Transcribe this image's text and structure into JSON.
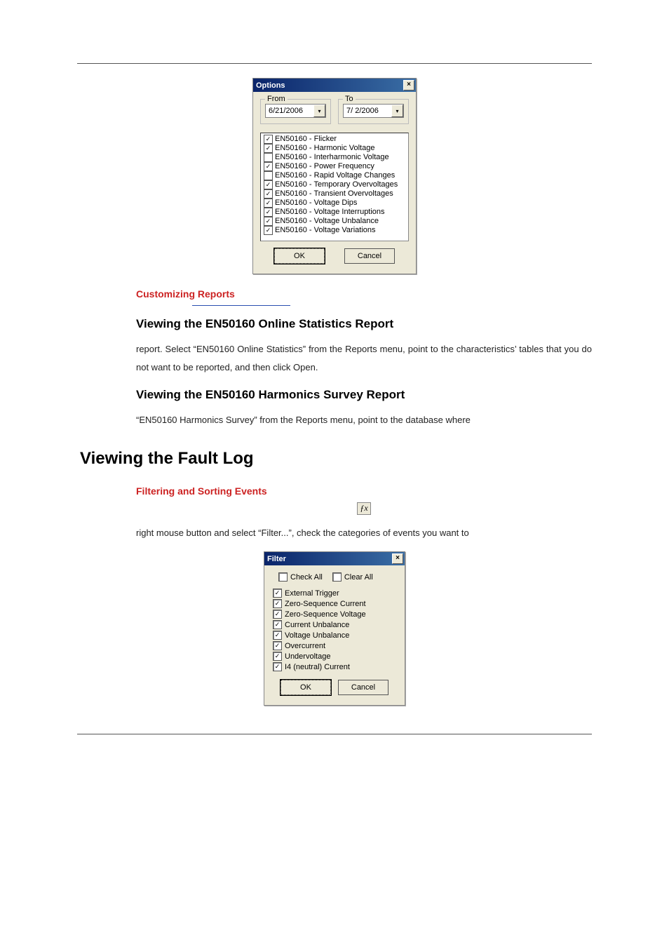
{
  "options_dialog": {
    "title": "Options",
    "from_label": "From",
    "to_label": "To",
    "from_date": "6/21/2006",
    "to_date": "7/ 2/2006",
    "items": [
      {
        "label": "EN50160 - Flicker",
        "checked": true
      },
      {
        "label": "EN50160 - Harmonic Voltage",
        "checked": true
      },
      {
        "label": "EN50160 - Interharmonic Voltage",
        "checked": false
      },
      {
        "label": "EN50160 - Power Frequency",
        "checked": true
      },
      {
        "label": "EN50160 - Rapid Voltage Changes",
        "checked": false
      },
      {
        "label": "EN50160 - Temporary Overvoltages",
        "checked": true
      },
      {
        "label": "EN50160 - Transient Overvoltages",
        "checked": true
      },
      {
        "label": "EN50160 - Voltage Dips",
        "checked": true
      },
      {
        "label": "EN50160 - Voltage Interruptions",
        "checked": true
      },
      {
        "label": "EN50160 - Voltage Unbalance",
        "checked": true
      },
      {
        "label": "EN50160 - Voltage Variations",
        "checked": true
      }
    ],
    "ok": "OK",
    "cancel": "Cancel"
  },
  "headings": {
    "customizing": "Customizing Reports",
    "online": "Viewing the EN50160 Online Statistics Report",
    "harmonics": "Viewing the EN50160 Harmonics Survey Report",
    "faultlog": "Viewing the Fault Log",
    "filtering": "Filtering and Sorting Events"
  },
  "body": {
    "online_p": "report. Select “EN50160 Online Statistics” from the Reports menu, point to the characteristics’ tables that you do not want to be reported, and then click Open.",
    "harmonics_p": "“EN50160 Harmonics Survey” from the Reports menu, point to the database where",
    "filter_p": "right mouse button and select “Filter...”, check the categories of events you want to",
    "fx": "ƒx"
  },
  "filter_dialog": {
    "title": "Filter",
    "check_all": "Check All",
    "clear_all": "Clear All",
    "items": [
      {
        "label": "External Trigger",
        "checked": true
      },
      {
        "label": "Zero-Sequence Current",
        "checked": true
      },
      {
        "label": "Zero-Sequence Voltage",
        "checked": true
      },
      {
        "label": "Current Unbalance",
        "checked": true
      },
      {
        "label": "Voltage Unbalance",
        "checked": true
      },
      {
        "label": "Overcurrent",
        "checked": true
      },
      {
        "label": "Undervoltage",
        "checked": true
      },
      {
        "label": "I4 (neutral) Current",
        "checked": true
      }
    ],
    "ok": "OK",
    "cancel": "Cancel"
  },
  "colors": {
    "page_bg": "#ffffff",
    "dialog_bg": "#ece9d8",
    "titlebar_start": "#0a246a",
    "titlebar_end": "#3a6ea5",
    "heading_red": "#c22",
    "link_blue": "#2a4fb0"
  }
}
